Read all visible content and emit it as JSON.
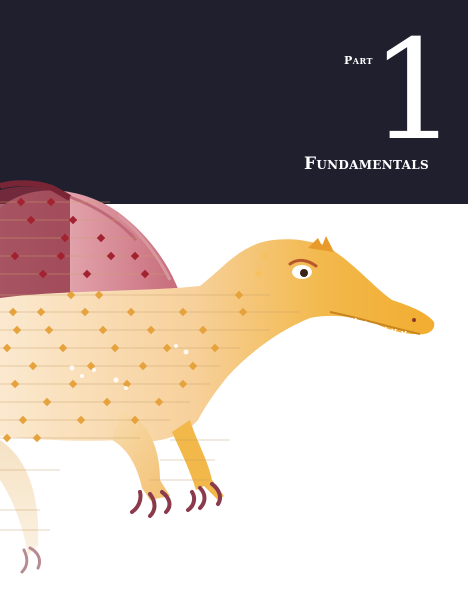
{
  "header": {
    "part_label": "Part",
    "part_number": "1",
    "title": "Fundamentals"
  },
  "illustration": {
    "subject": "spinosaurus-icon",
    "colors": {
      "background": "#1f1f2e",
      "sail": "#b8394a",
      "body": "#f2b33a",
      "body_light": "#f7d9a8",
      "claw": "#8a3a4a"
    }
  }
}
